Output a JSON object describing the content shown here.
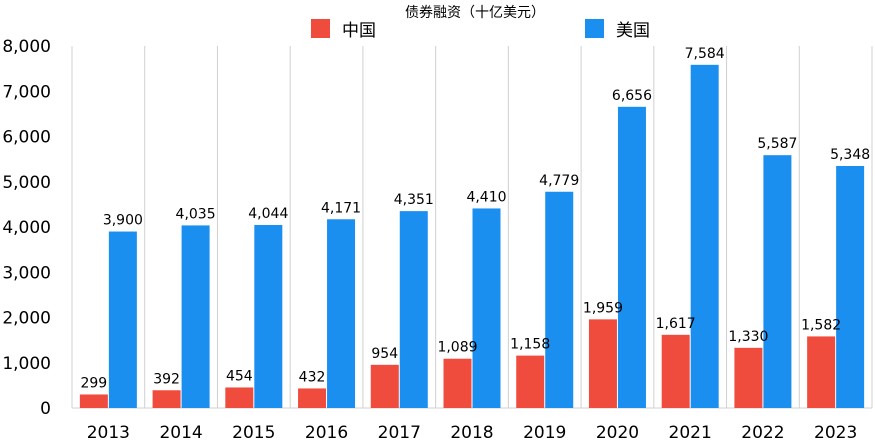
{
  "chart_data": {
    "type": "bar",
    "title": "债券融资（十亿美元）",
    "categories": [
      "2013",
      "2014",
      "2015",
      "2016",
      "2017",
      "2018",
      "2019",
      "2020",
      "2021",
      "2022",
      "2023"
    ],
    "series": [
      {
        "name": "中国",
        "color": "#f04c3e",
        "values": [
          299,
          392,
          454,
          432,
          954,
          1089,
          1158,
          1959,
          1617,
          1330,
          1582
        ],
        "labels": [
          "299",
          "392",
          "454",
          "432",
          "954",
          "1,089",
          "1,158",
          "1,959",
          "1,617",
          "1,330",
          "1,582"
        ]
      },
      {
        "name": "美国",
        "color": "#1a8ff0",
        "values": [
          3900,
          4035,
          4044,
          4171,
          4351,
          4410,
          4779,
          6656,
          7584,
          5587,
          5348
        ],
        "labels": [
          "3,900",
          "4,035",
          "4,044",
          "4,171",
          "4,351",
          "4,410",
          "4,779",
          "6,656",
          "7,584",
          "5,587",
          "5,348"
        ]
      }
    ],
    "ylim": [
      0,
      8000
    ],
    "yticks": [
      0,
      1000,
      2000,
      3000,
      4000,
      5000,
      6000,
      7000,
      8000
    ],
    "ytick_labels": [
      "0",
      "1,000",
      "2,000",
      "3,000",
      "4,000",
      "5,000",
      "6,000",
      "7,000",
      "8,000"
    ],
    "grid": "vertical",
    "legend": "top"
  }
}
